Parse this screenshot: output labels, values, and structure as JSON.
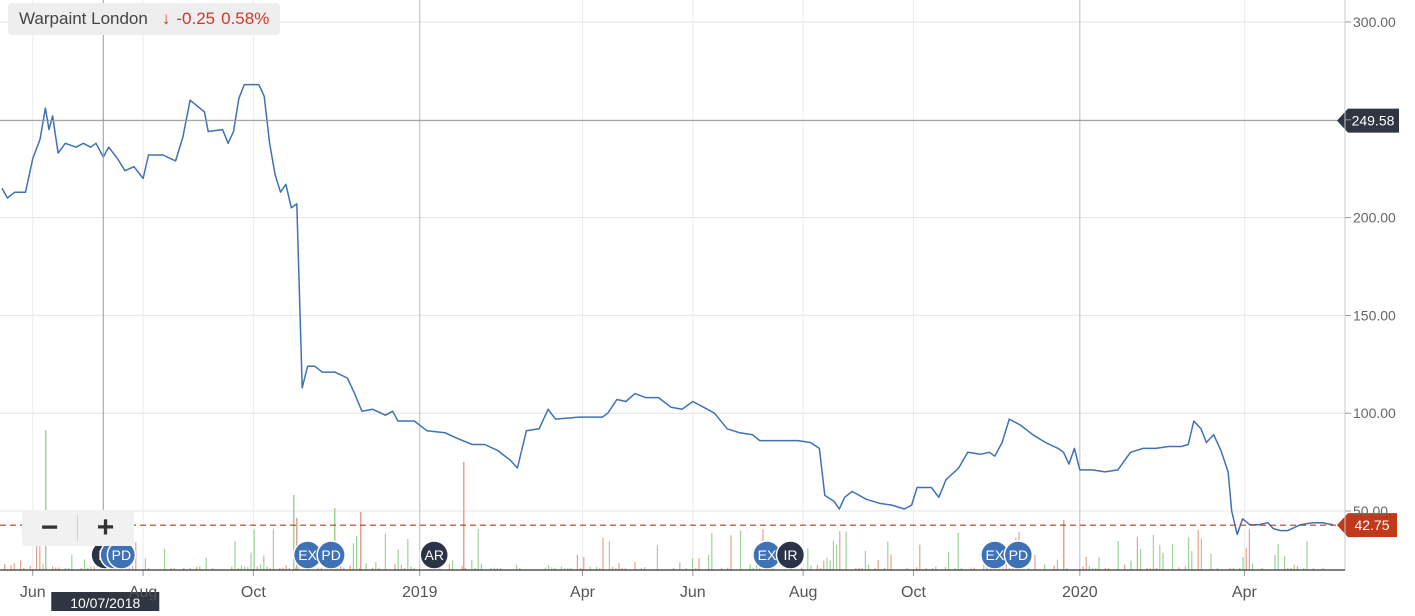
{
  "legend": {
    "name": "Warpaint London",
    "arrow": "↓",
    "change": "-0.25",
    "percent": "0.58%"
  },
  "crosshair": {
    "date": "10/07/2018",
    "price": "249.58"
  },
  "last_price": "42.75",
  "zoom": {
    "minus": "−",
    "plus": "+"
  },
  "colors": {
    "line": "#3f72b5",
    "last_price": "#c0391b",
    "crosshair_label": "#2f3541",
    "volume_up": "#9ed39a",
    "volume_down": "#e8a18f",
    "event_blue": "#3f72b5",
    "event_dark": "#2b3446"
  },
  "events": [
    {
      "label": "IR",
      "x": "2018-07-11",
      "style": "dark"
    },
    {
      "label": "X",
      "x": "2018-07-16",
      "style": "blue"
    },
    {
      "label": "PD",
      "x": "2018-07-20",
      "style": "blue"
    },
    {
      "label": "EX",
      "x": "2018-10-31",
      "style": "blue"
    },
    {
      "label": "PD",
      "x": "2018-11-13",
      "style": "blue"
    },
    {
      "label": "AR",
      "x": "2019-01-09",
      "style": "dark"
    },
    {
      "label": "EX",
      "x": "2019-07-12",
      "style": "blue"
    },
    {
      "label": "IR",
      "x": "2019-07-25",
      "style": "dark"
    },
    {
      "label": "EX",
      "x": "2019-11-15",
      "style": "blue"
    },
    {
      "label": "PD",
      "x": "2019-11-28",
      "style": "blue"
    }
  ],
  "chart_data": {
    "type": "line",
    "title": "Warpaint London",
    "xlabel": "",
    "ylabel": "",
    "x_range": [
      "2018-05-15",
      "2020-05-20"
    ],
    "ylim": [
      27,
      305
    ],
    "y_ticks": [
      50,
      100,
      150,
      200,
      250,
      300
    ],
    "y_tick_labels": [
      "50.00",
      "100.00",
      "150.00",
      "200.00",
      "",
      "300.00"
    ],
    "x_ticks": [
      {
        "date": "2018-06-01",
        "label": "Jun"
      },
      {
        "date": "2018-08-01",
        "label": "Aug"
      },
      {
        "date": "2018-10-01",
        "label": "Oct"
      },
      {
        "date": "2019-01-01",
        "label": "2019"
      },
      {
        "date": "2019-04-01",
        "label": "Apr"
      },
      {
        "date": "2019-06-01",
        "label": "Jun"
      },
      {
        "date": "2019-08-01",
        "label": "Aug"
      },
      {
        "date": "2019-10-01",
        "label": "Oct"
      },
      {
        "date": "2020-01-01",
        "label": "2020"
      },
      {
        "date": "2020-04-01",
        "label": "Apr"
      }
    ],
    "grid": true,
    "legend_position": "top-left",
    "series": [
      {
        "name": "Warpaint London",
        "points": [
          [
            "2018-05-15",
            215
          ],
          [
            "2018-05-18",
            210
          ],
          [
            "2018-05-22",
            213
          ],
          [
            "2018-05-28",
            213
          ],
          [
            "2018-06-01",
            230
          ],
          [
            "2018-06-05",
            240
          ],
          [
            "2018-06-08",
            256
          ],
          [
            "2018-06-10",
            245
          ],
          [
            "2018-06-12",
            252
          ],
          [
            "2018-06-15",
            233
          ],
          [
            "2018-06-19",
            238
          ],
          [
            "2018-06-25",
            236
          ],
          [
            "2018-06-29",
            238
          ],
          [
            "2018-07-03",
            236
          ],
          [
            "2018-07-06",
            238
          ],
          [
            "2018-07-10",
            231
          ],
          [
            "2018-07-13",
            236
          ],
          [
            "2018-07-18",
            230
          ],
          [
            "2018-07-22",
            224
          ],
          [
            "2018-07-27",
            226
          ],
          [
            "2018-08-01",
            220
          ],
          [
            "2018-08-04",
            232
          ],
          [
            "2018-08-12",
            232
          ],
          [
            "2018-08-19",
            229
          ],
          [
            "2018-08-23",
            241
          ],
          [
            "2018-08-27",
            260
          ],
          [
            "2018-08-31",
            257
          ],
          [
            "2018-09-04",
            254
          ],
          [
            "2018-09-06",
            244
          ],
          [
            "2018-09-14",
            245
          ],
          [
            "2018-09-17",
            238
          ],
          [
            "2018-09-20",
            244
          ],
          [
            "2018-09-23",
            261
          ],
          [
            "2018-09-26",
            268
          ],
          [
            "2018-10-04",
            268
          ],
          [
            "2018-10-07",
            262
          ],
          [
            "2018-10-10",
            238
          ],
          [
            "2018-10-13",
            222
          ],
          [
            "2018-10-16",
            213
          ],
          [
            "2018-10-19",
            217
          ],
          [
            "2018-10-22",
            205
          ],
          [
            "2018-10-25",
            207
          ],
          [
            "2018-10-28",
            113
          ],
          [
            "2018-10-31",
            124
          ],
          [
            "2018-11-04",
            124
          ],
          [
            "2018-11-08",
            121
          ],
          [
            "2018-11-15",
            121
          ],
          [
            "2018-11-22",
            118
          ],
          [
            "2018-11-26",
            110
          ],
          [
            "2018-11-30",
            101
          ],
          [
            "2018-12-06",
            102
          ],
          [
            "2018-12-13",
            99
          ],
          [
            "2018-12-17",
            101
          ],
          [
            "2018-12-20",
            96
          ],
          [
            "2018-12-29",
            96
          ],
          [
            "2019-01-05",
            91
          ],
          [
            "2019-01-15",
            90
          ],
          [
            "2019-01-22",
            87
          ],
          [
            "2019-01-30",
            84
          ],
          [
            "2019-02-06",
            84
          ],
          [
            "2019-02-13",
            81
          ],
          [
            "2019-02-20",
            76
          ],
          [
            "2019-02-24",
            72
          ],
          [
            "2019-03-01",
            91
          ],
          [
            "2019-03-08",
            92
          ],
          [
            "2019-03-13",
            102
          ],
          [
            "2019-03-17",
            97
          ],
          [
            "2019-03-30",
            98
          ],
          [
            "2019-04-12",
            98
          ],
          [
            "2019-04-15",
            100
          ],
          [
            "2019-04-20",
            107
          ],
          [
            "2019-04-25",
            106
          ],
          [
            "2019-04-30",
            110
          ],
          [
            "2019-05-06",
            108
          ],
          [
            "2019-05-13",
            108
          ],
          [
            "2019-05-20",
            103
          ],
          [
            "2019-05-26",
            102
          ],
          [
            "2019-06-01",
            106
          ],
          [
            "2019-06-07",
            103
          ],
          [
            "2019-06-13",
            100
          ],
          [
            "2019-06-20",
            92
          ],
          [
            "2019-06-27",
            90
          ],
          [
            "2019-07-04",
            89
          ],
          [
            "2019-07-08",
            86
          ],
          [
            "2019-07-15",
            86
          ],
          [
            "2019-07-29",
            86
          ],
          [
            "2019-08-05",
            85
          ],
          [
            "2019-08-10",
            82
          ],
          [
            "2019-08-13",
            58
          ],
          [
            "2019-08-18",
            55
          ],
          [
            "2019-08-21",
            51
          ],
          [
            "2019-08-24",
            57
          ],
          [
            "2019-08-28",
            60
          ],
          [
            "2019-09-05",
            56
          ],
          [
            "2019-09-12",
            54
          ],
          [
            "2019-09-19",
            53
          ],
          [
            "2019-09-26",
            51
          ],
          [
            "2019-09-30",
            53
          ],
          [
            "2019-10-03",
            62
          ],
          [
            "2019-10-11",
            62
          ],
          [
            "2019-10-15",
            57
          ],
          [
            "2019-10-19",
            66
          ],
          [
            "2019-10-26",
            72
          ],
          [
            "2019-10-31",
            80
          ],
          [
            "2019-11-07",
            79
          ],
          [
            "2019-11-12",
            80
          ],
          [
            "2019-11-15",
            78
          ],
          [
            "2019-11-19",
            85
          ],
          [
            "2019-11-23",
            97
          ],
          [
            "2019-11-29",
            94
          ],
          [
            "2019-12-06",
            89
          ],
          [
            "2019-12-13",
            85
          ],
          [
            "2019-12-20",
            82
          ],
          [
            "2019-12-23",
            80
          ],
          [
            "2019-12-26",
            74
          ],
          [
            "2019-12-29",
            82
          ],
          [
            "2020-01-01",
            71
          ],
          [
            "2020-01-08",
            71
          ],
          [
            "2020-01-15",
            70
          ],
          [
            "2020-01-22",
            71
          ],
          [
            "2020-01-29",
            80
          ],
          [
            "2020-02-05",
            82
          ],
          [
            "2020-02-12",
            82
          ],
          [
            "2020-02-19",
            83
          ],
          [
            "2020-02-26",
            83
          ],
          [
            "2020-03-01",
            84
          ],
          [
            "2020-03-04",
            96
          ],
          [
            "2020-03-08",
            92
          ],
          [
            "2020-03-11",
            85
          ],
          [
            "2020-03-15",
            89
          ],
          [
            "2020-03-19",
            81
          ],
          [
            "2020-03-23",
            70
          ],
          [
            "2020-03-25",
            50
          ],
          [
            "2020-03-28",
            38
          ],
          [
            "2020-03-31",
            46
          ],
          [
            "2020-04-04",
            43
          ],
          [
            "2020-04-09",
            43
          ],
          [
            "2020-04-14",
            44
          ],
          [
            "2020-04-17",
            41
          ],
          [
            "2020-04-21",
            40
          ],
          [
            "2020-04-25",
            40
          ],
          [
            "2020-05-02",
            43
          ],
          [
            "2020-05-09",
            44
          ],
          [
            "2020-05-14",
            44
          ],
          [
            "2020-05-20",
            43
          ]
        ]
      }
    ]
  }
}
